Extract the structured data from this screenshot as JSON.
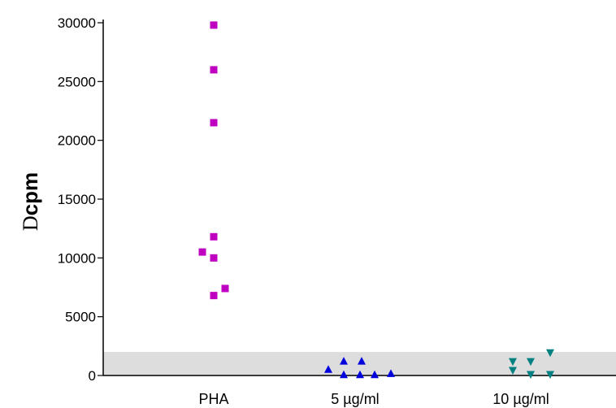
{
  "chart_data": {
    "type": "scatter",
    "title": "",
    "ylabel": {
      "symbol": "D",
      "text": "cpm"
    },
    "xlabel": "",
    "ylim": [
      0,
      30000
    ],
    "yticks": [
      0,
      5000,
      10000,
      15000,
      20000,
      25000,
      30000
    ],
    "categories": [
      "PHA",
      "5 µg/ml",
      "10 µg/ml"
    ],
    "shaded_band": {
      "from": 0,
      "to": 2000,
      "color": "#dddddd"
    },
    "series": [
      {
        "category": "PHA",
        "marker": "square",
        "color": "#c000c0",
        "points": [
          {
            "offset": 0,
            "y": 29800
          },
          {
            "offset": 0,
            "y": 26000
          },
          {
            "offset": 0,
            "y": 21500
          },
          {
            "offset": 0,
            "y": 11800
          },
          {
            "offset": -0.14,
            "y": 10500
          },
          {
            "offset": 0,
            "y": 10000
          },
          {
            "offset": 0.14,
            "y": 7400
          },
          {
            "offset": 0,
            "y": 6800
          }
        ]
      },
      {
        "category": "5 µg/ml",
        "marker": "triangle-up",
        "color": "#0000dd",
        "points": [
          {
            "offset": -0.33,
            "y": 500
          },
          {
            "offset": -0.14,
            "y": 1200
          },
          {
            "offset": 0.08,
            "y": 1200
          },
          {
            "offset": -0.14,
            "y": 50
          },
          {
            "offset": 0.06,
            "y": 50
          },
          {
            "offset": 0.24,
            "y": 50
          },
          {
            "offset": 0.44,
            "y": 150
          }
        ]
      },
      {
        "category": "10 µg/ml",
        "marker": "triangle-down",
        "color": "#008080",
        "points": [
          {
            "offset": -0.1,
            "y": 1200
          },
          {
            "offset": 0.12,
            "y": 1200
          },
          {
            "offset": 0.36,
            "y": 1950
          },
          {
            "offset": -0.1,
            "y": 450
          },
          {
            "offset": 0.12,
            "y": 100
          },
          {
            "offset": 0.36,
            "y": 100
          }
        ]
      }
    ]
  }
}
